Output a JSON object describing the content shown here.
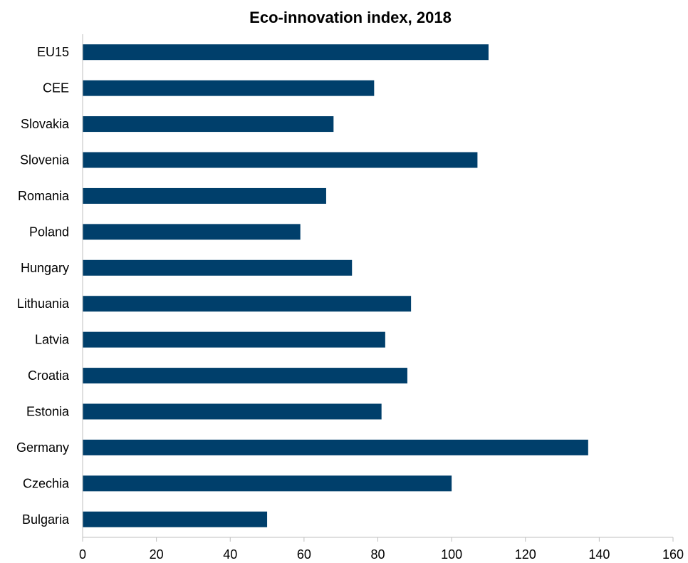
{
  "chart_data": {
    "type": "bar",
    "orientation": "horizontal",
    "title": "Eco-innovation index, 2018",
    "xlabel": "",
    "ylabel": "",
    "categories": [
      "EU15",
      "CEE",
      "Slovakia",
      "Slovenia",
      "Romania",
      "Poland",
      "Hungary",
      "Lithuania",
      "Latvia",
      "Croatia",
      "Estonia",
      "Germany",
      "Czechia",
      "Bulgaria"
    ],
    "values": [
      110,
      79,
      68,
      107,
      66,
      59,
      73,
      89,
      82,
      88,
      81,
      137,
      100,
      50
    ],
    "xlim": [
      0,
      160
    ],
    "xticks": [
      0,
      20,
      40,
      60,
      80,
      100,
      120,
      140,
      160
    ],
    "grid": false,
    "legend": "none",
    "bar_color": "#003f6b",
    "axis_color": "#bfbfbf"
  }
}
